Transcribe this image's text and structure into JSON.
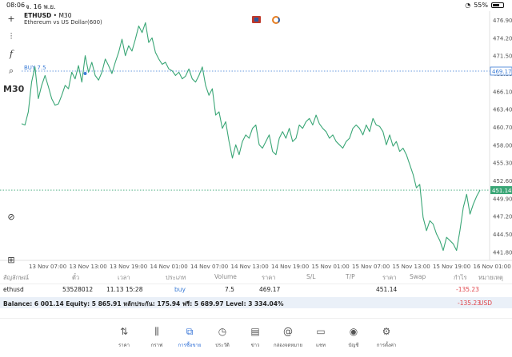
{
  "status_bar": {
    "time": "08:06",
    "date": "จ. 16 พ.ย.",
    "battery": "55%"
  },
  "chart": {
    "symbol": "ETHUSD",
    "timeframe_sep": "•",
    "timeframe": "M30",
    "description": "Ethereum vs US Dollar(600)",
    "buy_label": "BUY 7.5",
    "buy_price": 469.17,
    "current_price": 451.14,
    "y_labels": [
      "476.90",
      "474.20",
      "471.50",
      "468.80",
      "466.10",
      "463.40",
      "460.70",
      "458.00",
      "455.30",
      "452.60",
      "449.90",
      "447.20",
      "444.50",
      "441.80"
    ],
    "buy_price_label": "469.17",
    "current_price_label": "451.14",
    "x_labels": [
      "13 Nov 07:00",
      "13 Nov 13:00",
      "13 Nov 19:00",
      "14 Nov 01:00",
      "14 Nov 07:00",
      "14 Nov 13:00",
      "14 Nov 19:00",
      "15 Nov 01:00",
      "15 Nov 07:00",
      "15 Nov 13:00",
      "15 Nov 19:00",
      "16 Nov 01:00"
    ],
    "line_color": "#3aa676",
    "buy_line_color": "#3a7bd5",
    "current_line_color": "#3aa676"
  },
  "chart_data": {
    "type": "line",
    "ylim": [
      440.5,
      478.0
    ],
    "series": [
      {
        "values": [
          461.2,
          461.0,
          463.0,
          467.5,
          469.8,
          465.0,
          467.0,
          468.5,
          466.8,
          465.0,
          464.0,
          464.2,
          465.5,
          467.0,
          466.5,
          469.0,
          468.0,
          470.0,
          467.5,
          471.5,
          469.0,
          470.5,
          468.5,
          467.8,
          469.0,
          471.0,
          470.0,
          468.8,
          470.5,
          472.0,
          474.0,
          471.5,
          473.0,
          472.2,
          474.0,
          476.0,
          475.0,
          476.5,
          473.5,
          474.2,
          472.0,
          471.0,
          470.2,
          470.5,
          469.5,
          469.2,
          468.5,
          469.0,
          468.0,
          468.4,
          469.5,
          468.0,
          467.5,
          468.5,
          469.8,
          467.0,
          465.5,
          466.5,
          462.5,
          463.0,
          460.5,
          461.5,
          458.5,
          456.0,
          458.0,
          456.5,
          458.5,
          459.5,
          459.0,
          460.5,
          461.0,
          458.0,
          457.5,
          458.5,
          459.5,
          457.0,
          456.5,
          459.0,
          460.0,
          459.0,
          460.5,
          458.5,
          459.0,
          461.0,
          460.5,
          461.5,
          462.0,
          461.0,
          462.5,
          461.2,
          460.5,
          460.0,
          459.0,
          459.5,
          458.5,
          458.0,
          457.5,
          458.5,
          459.0,
          460.5,
          461.0,
          460.5,
          459.5,
          461.0,
          460.0,
          462.0,
          461.0,
          460.8,
          460.0,
          458.0,
          459.5,
          457.8,
          458.5,
          457.0,
          457.5,
          456.5,
          455.0,
          453.5,
          451.5,
          452.0,
          447.0,
          445.0,
          446.5,
          446.0,
          444.5,
          443.5,
          442.0,
          444.0,
          443.5,
          443.0,
          442.0,
          445.0,
          448.5,
          450.5,
          447.5,
          449.0,
          450.2,
          451.14
        ]
      }
    ]
  },
  "table": {
    "headers": [
      "สัญลักษณ์",
      "ตั๋ว",
      "เวลา",
      "ประเภท",
      "Volume",
      "ราคา",
      "S/L",
      "T/P",
      "ราคา",
      "Swap",
      "กำไร",
      "หมายเหตุ"
    ],
    "row": {
      "symbol": "ethusd",
      "ticket": "53528012",
      "time": "11.13 15:28",
      "type": "buy",
      "volume": "7.5",
      "open_price": "469.17",
      "sl": "",
      "tp": "",
      "price": "451.14",
      "swap": "",
      "profit": "-135.23",
      "comment": ""
    }
  },
  "balance": {
    "text": "Balance: 6 001.14 Equity: 5 865.91 หลักประกัน: 175.94 ฟรี: 5 689.97 Level: 3 334.04%",
    "profit": "-135.23",
    "currency": "USD"
  },
  "nav": {
    "items": [
      {
        "label": "ราคา",
        "icon": "arrows-up-down-icon"
      },
      {
        "label": "กราฟ",
        "icon": "candles-icon"
      },
      {
        "label": "การซื้อขาย",
        "icon": "trade-chart-icon"
      },
      {
        "label": "ประวัติ",
        "icon": "history-icon"
      },
      {
        "label": "ข่าว",
        "icon": "news-icon"
      },
      {
        "label": "กล่องจดหมาย",
        "icon": "at-icon"
      },
      {
        "label": "แชท",
        "icon": "chat-icon"
      },
      {
        "label": "บัญชี",
        "icon": "account-icon"
      },
      {
        "label": "การตั้งค่า",
        "icon": "gear-icon"
      }
    ],
    "active_index": 2
  }
}
